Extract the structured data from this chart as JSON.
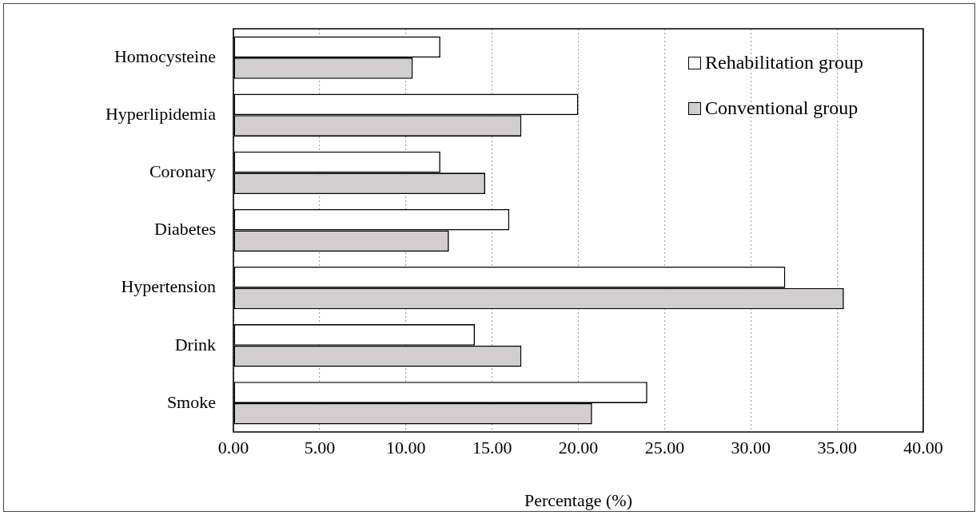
{
  "chart_data": {
    "type": "bar",
    "orientation": "horizontal",
    "xlabel": "Percentage (%)",
    "categories": [
      "Homocysteine",
      "Hyperlipidemia",
      "Coronary",
      "Diabetes",
      "Hypertension",
      "Drink",
      "Smoke"
    ],
    "series": [
      {
        "name": "Rehabilitation group",
        "color": "#ffffff",
        "values": [
          12.0,
          20.0,
          12.0,
          16.0,
          32.0,
          14.0,
          24.0
        ]
      },
      {
        "name": "Conventional group",
        "color": "#d0cecf",
        "values": [
          10.4,
          16.7,
          14.6,
          12.5,
          35.4,
          16.7,
          20.8
        ]
      }
    ],
    "xlim": [
      0,
      40
    ],
    "xticks": [
      {
        "value": 0,
        "label": "0.00"
      },
      {
        "value": 5,
        "label": "5.00"
      },
      {
        "value": 10,
        "label": "10.00"
      },
      {
        "value": 15,
        "label": "15.00"
      },
      {
        "value": 20,
        "label": "20.00"
      },
      {
        "value": 25,
        "label": "25.00"
      },
      {
        "value": 30,
        "label": "30.00"
      },
      {
        "value": 35,
        "label": "35.00"
      },
      {
        "value": 40,
        "label": "40.00"
      }
    ],
    "grid": "x",
    "legend": "top right"
  }
}
